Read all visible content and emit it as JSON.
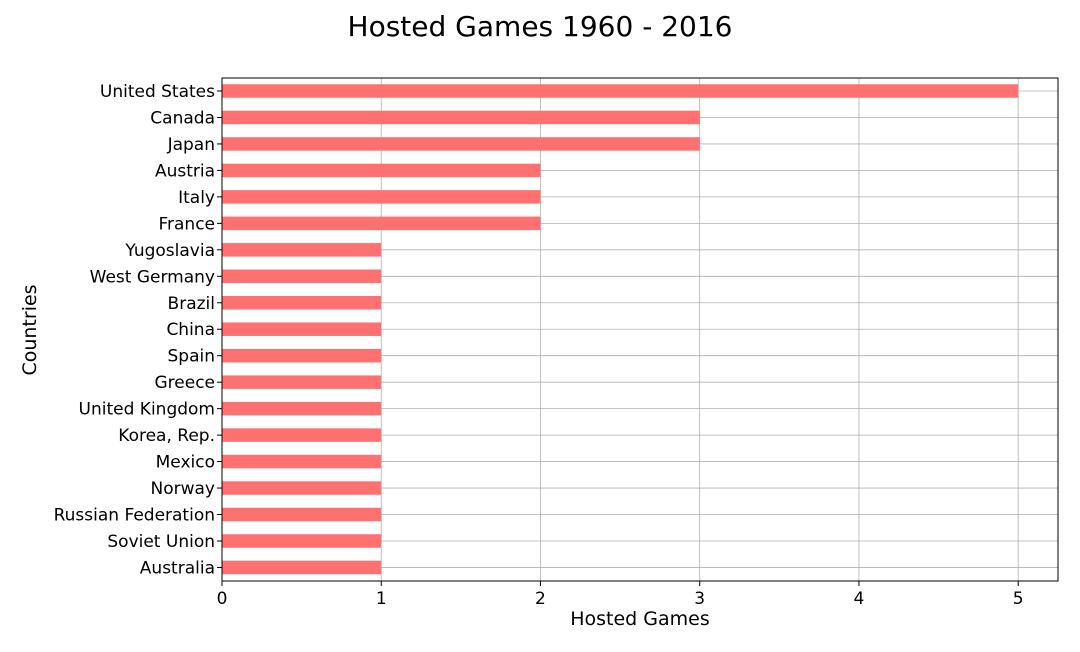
{
  "chart_data": {
    "type": "bar",
    "orientation": "horizontal",
    "title": "Hosted Games 1960 - 2016",
    "xlabel": "Hosted Games",
    "ylabel": "Countries",
    "categories": [
      "United States",
      "Canada",
      "Japan",
      "Austria",
      "Italy",
      "France",
      "Yugoslavia",
      "West Germany",
      "Brazil",
      "China",
      "Spain",
      "Greece",
      "United Kingdom",
      "Korea, Rep.",
      "Mexico",
      "Norway",
      "Russian Federation",
      "Soviet Union",
      "Australia"
    ],
    "values": [
      5,
      3,
      3,
      2,
      2,
      2,
      1,
      1,
      1,
      1,
      1,
      1,
      1,
      1,
      1,
      1,
      1,
      1,
      1
    ],
    "xlim": [
      0,
      5.25
    ],
    "xticks": [
      "0",
      "1",
      "2",
      "3",
      "4",
      "5"
    ],
    "grid": true,
    "bar_color": "#ff7171",
    "grid_color": "#b0b0b0"
  }
}
